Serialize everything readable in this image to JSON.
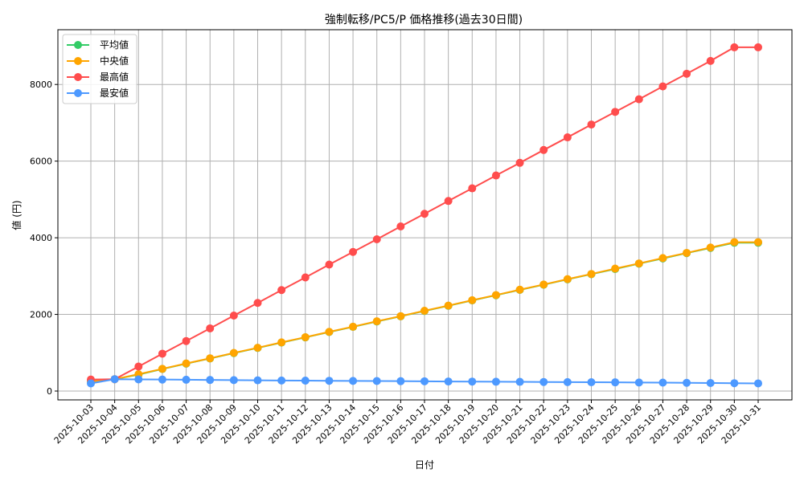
{
  "chart_data": {
    "type": "line",
    "title": "強制転移/PC5/P 価格推移(過去30日間)",
    "xlabel": "日付",
    "ylabel": "値 (円)",
    "ylim": [
      -450,
      9430
    ],
    "yticks": [
      0,
      2000,
      4000,
      6000,
      8000
    ],
    "grid": true,
    "legend_position": "upper left",
    "categories": [
      "2025-10-03",
      "2025-10-04",
      "2025-10-05",
      "2025-10-06",
      "2025-10-07",
      "2025-10-08",
      "2025-10-09",
      "2025-10-10",
      "2025-10-11",
      "2025-10-12",
      "2025-10-13",
      "2025-10-14",
      "2025-10-15",
      "2025-10-16",
      "2025-10-17",
      "2025-10-18",
      "2025-10-19",
      "2025-10-20",
      "2025-10-21",
      "2025-10-22",
      "2025-10-23",
      "2025-10-24",
      "2025-10-25",
      "2025-10-26",
      "2025-10-27",
      "2025-10-28",
      "2025-10-29",
      "2025-10-30",
      "2025-10-31"
    ],
    "series": [
      {
        "name": "平均値",
        "color": "#33cc66",
        "values": [
          250,
          310,
          430,
          575,
          715,
          850,
          990,
          1125,
          1265,
          1400,
          1540,
          1675,
          1815,
          1950,
          2090,
          2225,
          2365,
          2500,
          2640,
          2775,
          2915,
          3050,
          3185,
          3325,
          3460,
          3600,
          3735,
          3870,
          3870
        ]
      },
      {
        "name": "中央値",
        "color": "#ffa500",
        "values": [
          250,
          310,
          440,
          580,
          720,
          855,
          995,
          1130,
          1270,
          1405,
          1545,
          1680,
          1820,
          1955,
          2095,
          2230,
          2370,
          2505,
          2645,
          2780,
          2920,
          3055,
          3195,
          3330,
          3470,
          3605,
          3745,
          3885,
          3885
        ]
      },
      {
        "name": "最高値",
        "color": "#ff4d4d",
        "values": [
          300,
          310,
          640,
          975,
          1305,
          1635,
          1970,
          2300,
          2635,
          2965,
          3300,
          3630,
          3960,
          4295,
          4625,
          4960,
          5290,
          5625,
          5955,
          6290,
          6620,
          6955,
          7285,
          7615,
          7950,
          8280,
          8615,
          8970,
          8970
        ]
      },
      {
        "name": "最安値",
        "color": "#4d99ff",
        "values": [
          200,
          310,
          305,
          300,
          295,
          290,
          285,
          280,
          275,
          272,
          268,
          265,
          262,
          258,
          255,
          250,
          247,
          243,
          240,
          237,
          233,
          230,
          227,
          223,
          220,
          215,
          210,
          205,
          200
        ]
      }
    ]
  }
}
